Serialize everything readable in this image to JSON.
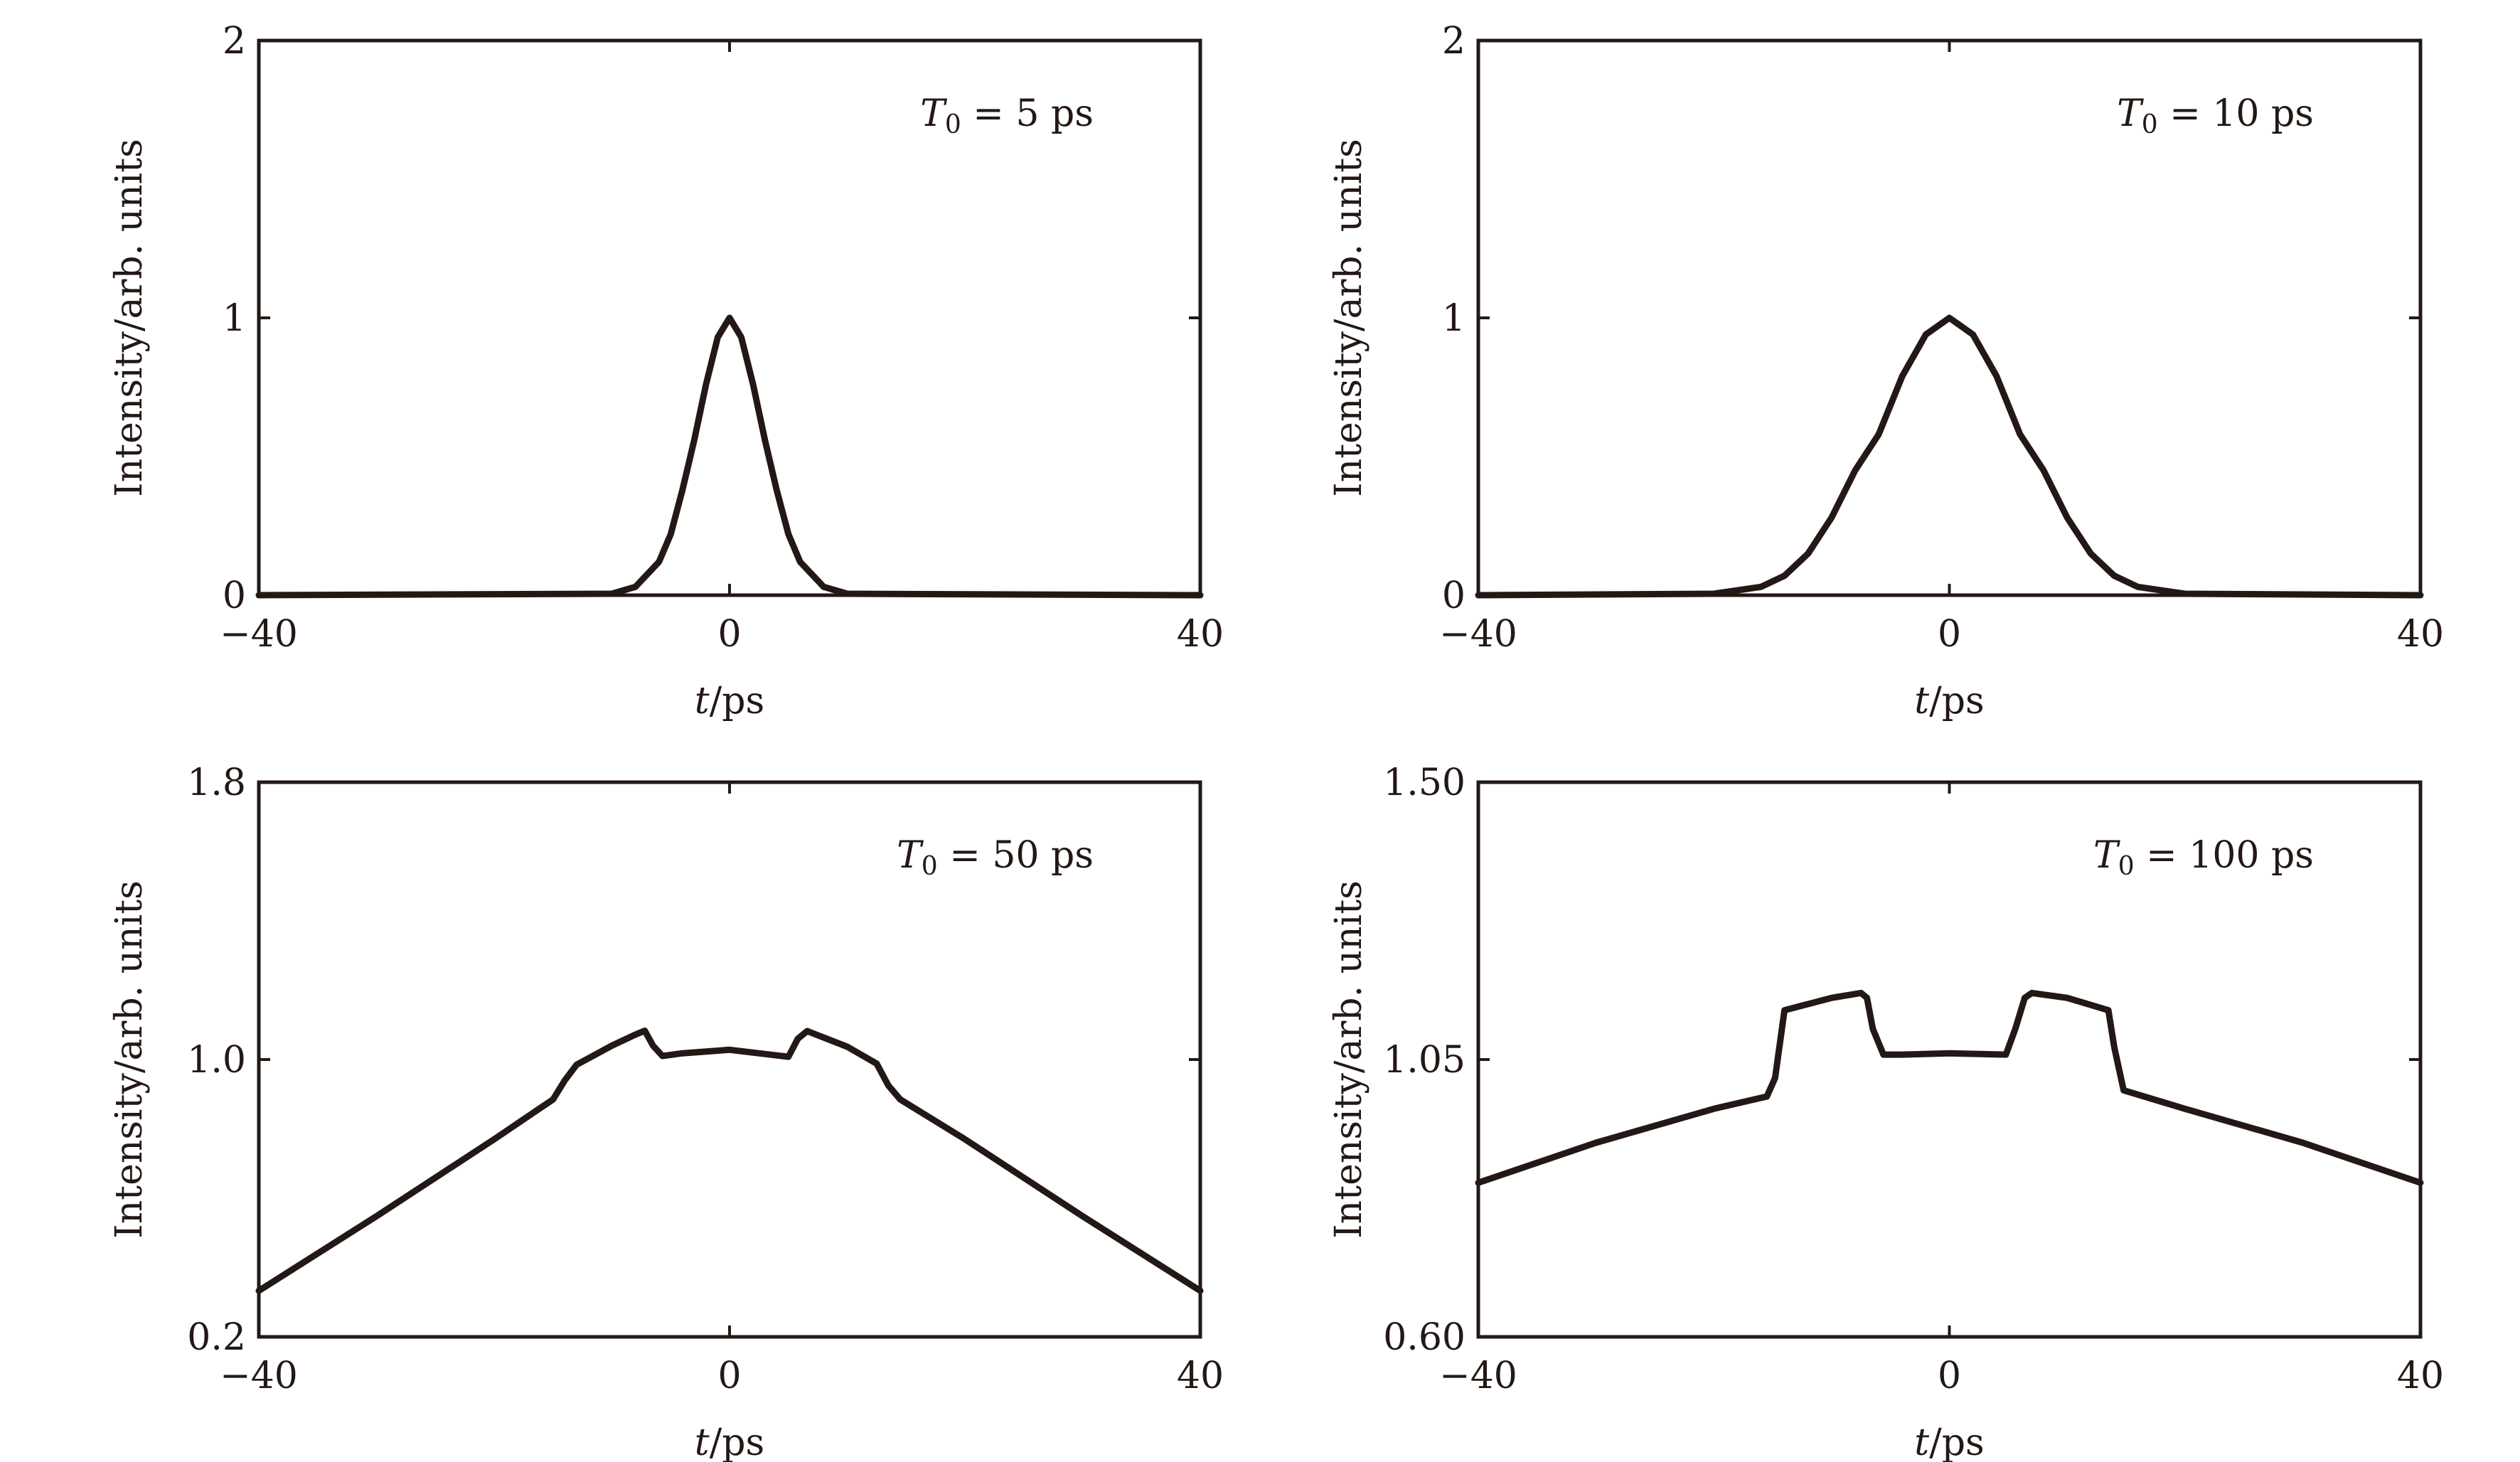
{
  "chart_data": [
    {
      "type": "line",
      "xlabel": "t/ps",
      "ylabel": "Intensity/arb. units",
      "annotation": "T0 = 5 ps",
      "xlim": [
        -40,
        40
      ],
      "ylim": [
        0,
        2
      ],
      "x_ticks": [
        "−40",
        "0",
        "40"
      ],
      "y_ticks": [
        "0",
        "1",
        "2"
      ],
      "series": [
        {
          "name": "T0 = 5 ps",
          "x": [
            -40,
            -10,
            -8,
            -6,
            -5,
            -4,
            -3,
            -2,
            -1,
            0,
            1,
            2,
            3,
            4,
            5,
            6,
            8,
            10,
            40
          ],
          "y": [
            0,
            0.005,
            0.03,
            0.12,
            0.22,
            0.38,
            0.56,
            0.76,
            0.93,
            1.0,
            0.93,
            0.76,
            0.56,
            0.38,
            0.22,
            0.12,
            0.03,
            0.005,
            0
          ]
        }
      ]
    },
    {
      "type": "line",
      "xlabel": "t/ps",
      "ylabel": "Intensity/arb. units",
      "annotation": "T0 = 10 ps",
      "xlim": [
        -40,
        40
      ],
      "ylim": [
        0,
        2
      ],
      "x_ticks": [
        "−40",
        "0",
        "40"
      ],
      "y_ticks": [
        "0",
        "1",
        "2"
      ],
      "series": [
        {
          "name": "T0 = 10 ps",
          "x": [
            -40,
            -20,
            -16,
            -14,
            -12,
            -10,
            -8,
            -6,
            -4,
            -2,
            0,
            2,
            4,
            6,
            8,
            10,
            12,
            14,
            16,
            20,
            40
          ],
          "y": [
            0,
            0.005,
            0.03,
            0.07,
            0.15,
            0.28,
            0.45,
            0.58,
            0.79,
            0.94,
            1.0,
            0.94,
            0.79,
            0.58,
            0.45,
            0.28,
            0.15,
            0.07,
            0.03,
            0.005,
            0
          ]
        }
      ]
    },
    {
      "type": "line",
      "xlabel": "t/ps",
      "ylabel": "Intensity/arb. units",
      "annotation": "T0 = 50 ps",
      "xlim": [
        -40,
        40
      ],
      "ylim": [
        0.2,
        1.8
      ],
      "x_ticks": [
        "−40",
        "0",
        "40"
      ],
      "y_ticks": [
        "0.2",
        "1.0",
        "1.8"
      ],
      "series": [
        {
          "name": "T0 = 50 ps",
          "x": [
            -40,
            -30,
            -20,
            -15,
            -14,
            -13,
            -10,
            -8,
            -7.2,
            -6.5,
            -5.7,
            -4,
            0,
            4,
            5,
            5.8,
            6.6,
            10,
            12.5,
            13.5,
            14.5,
            20,
            30,
            40
          ],
          "y": [
            0.333,
            0.548,
            0.77,
            0.885,
            0.94,
            0.985,
            1.04,
            1.072,
            1.083,
            1.04,
            1.01,
            1.018,
            1.028,
            1.012,
            1.008,
            1.06,
            1.082,
            1.037,
            0.988,
            0.925,
            0.885,
            0.77,
            0.548,
            0.333
          ]
        }
      ]
    },
    {
      "type": "line",
      "xlabel": "t/ps",
      "ylabel": "Intensity/arb. units",
      "annotation": "T0 = 100 ps",
      "xlim": [
        -40,
        40
      ],
      "ylim": [
        0.6,
        1.5
      ],
      "x_ticks": [
        "−40",
        "0",
        "40"
      ],
      "y_ticks": [
        "0.60",
        "1.05",
        "1.50"
      ],
      "series": [
        {
          "name": "T0 = 100 ps",
          "x": [
            -40,
            -30,
            -20,
            -15.5,
            -14.8,
            -14,
            -10,
            -7.5,
            -7,
            -6.5,
            -5.6,
            -4,
            0,
            4.8,
            5.6,
            6.4,
            7,
            10,
            13.5,
            14,
            14.8,
            20,
            30,
            40
          ],
          "y": [
            0.85,
            0.915,
            0.97,
            0.99,
            1.02,
            1.13,
            1.15,
            1.158,
            1.15,
            1.1,
            1.058,
            1.058,
            1.06,
            1.058,
            1.1,
            1.15,
            1.158,
            1.15,
            1.13,
            1.07,
            1.0,
            0.97,
            0.915,
            0.85
          ]
        }
      ]
    }
  ]
}
